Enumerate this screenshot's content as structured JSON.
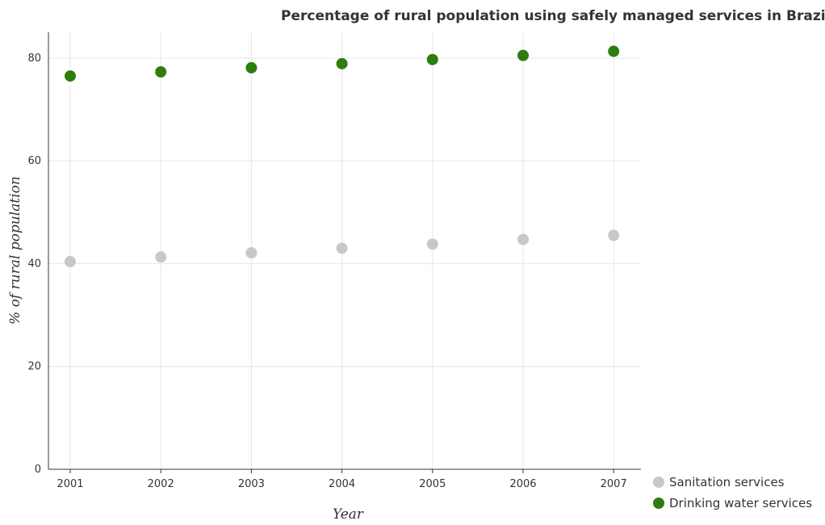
{
  "chart_data": {
    "type": "scatter",
    "title": "Percentage of rural population using safely managed services in Brazil",
    "xlabel": "Year",
    "ylabel": "% of rural population",
    "categories": [
      "2001",
      "2002",
      "2003",
      "2004",
      "2005",
      "2006",
      "2007"
    ],
    "ylim": [
      0,
      85
    ],
    "yticks": [
      0,
      20,
      40,
      60,
      80
    ],
    "grid": true,
    "legend_position": "bottom-right",
    "series": [
      {
        "name": "Sanitation services",
        "color": "#c8c8c8",
        "values": [
          40.4,
          41.3,
          42.1,
          43.0,
          43.8,
          44.7,
          45.5
        ]
      },
      {
        "name": "Drinking water services",
        "color": "#2e7d0f",
        "values": [
          76.5,
          77.3,
          78.1,
          78.9,
          79.7,
          80.5,
          81.3
        ]
      }
    ]
  }
}
